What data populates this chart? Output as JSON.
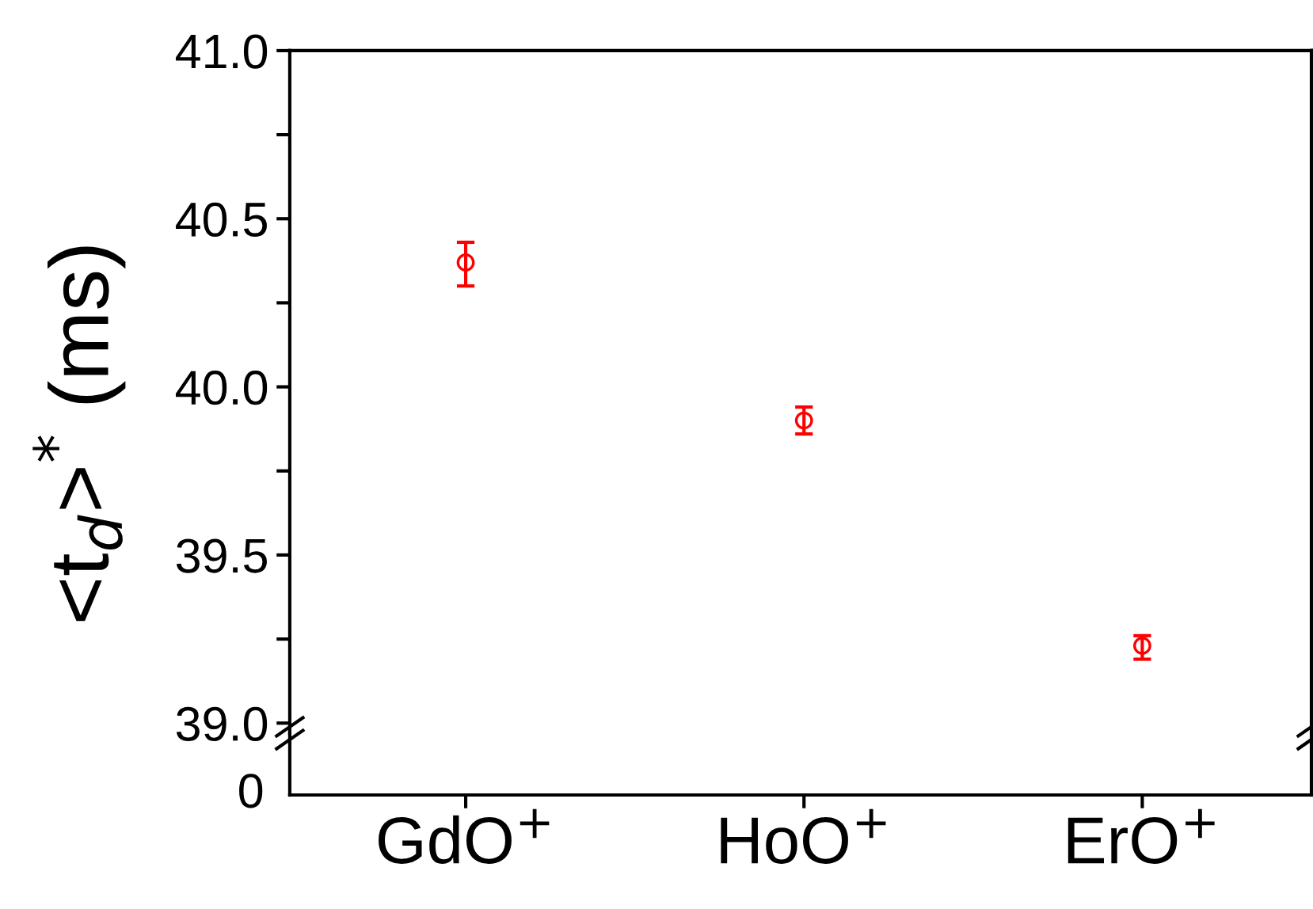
{
  "chart_data": [
    {
      "type": "scatter",
      "ylabel": "<t$_{d}$>$^{*}$ (ms)",
      "categories": [
        null,
        null,
        null
      ],
      "series": [
        {
          "color": "#ff0000",
          "values": [
            40.37,
            39.9,
            39.23
          ],
          "errors": [
            [
              40.3,
              40.43
            ],
            [
              39.86,
              39.94
            ],
            [
              39.19,
              39.26
            ]
          ]
        }
      ],
      "marker": "circle",
      "tick_labels": "y",
      "ylim": [
        38.97,
        41.0
      ],
      "yticks": [
        {
          "value": 39.0,
          "label": "39.0"
        },
        {
          "value": 39.25,
          "label": null
        },
        39.5,
        {
          "value": 39.75,
          "label": null
        },
        {
          "value": 40.0,
          "label": "40.0"
        },
        {
          "value": 40.25,
          "label": null
        },
        40.5,
        {
          "value": 40.75,
          "label": null
        },
        {
          "value": 41.0,
          "label": "41.0"
        }
      ]
    },
    {
      "type": "other",
      "categories": [
        "GdO$^{+}$",
        "HoO$^{+}$",
        "ErO$^{+}$"
      ],
      "annotations": [
        "0"
      ]
    }
  ]
}
